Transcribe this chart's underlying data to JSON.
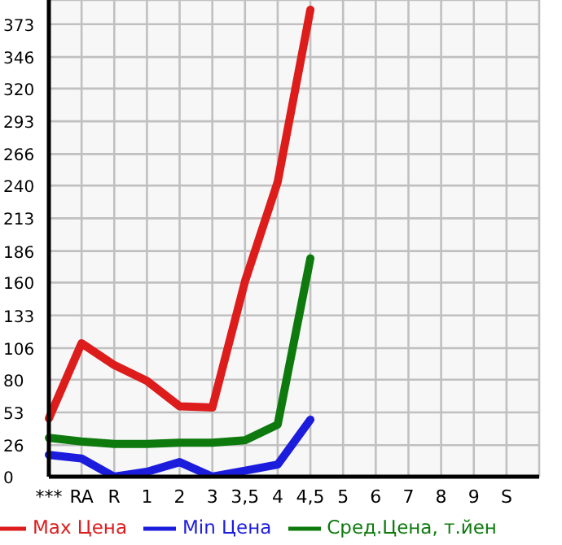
{
  "chart_data": {
    "type": "line",
    "categories": [
      "***",
      "RA",
      "R",
      "1",
      "2",
      "3",
      "3,5",
      "4",
      "4,5",
      "5",
      "6",
      "7",
      "8",
      "9",
      "S",
      null
    ],
    "series": [
      {
        "name": "Max Цена",
        "color": "#dd1c1c",
        "values": [
          48,
          110,
          92,
          79,
          58,
          57,
          161,
          243,
          385,
          null,
          null,
          null,
          null,
          null,
          null,
          null
        ]
      },
      {
        "name": "Min Цена",
        "color": "#1c1cdd",
        "values": [
          18,
          15,
          0,
          4,
          12,
          0,
          5,
          10,
          47,
          null,
          null,
          null,
          null,
          null,
          null,
          null
        ]
      },
      {
        "name": "Сред.Цена, т.йен",
        "color": "#0e7a0e",
        "values": [
          32,
          29,
          27,
          27,
          28,
          28,
          30,
          43,
          180,
          null,
          null,
          null,
          null,
          null,
          null,
          null
        ]
      }
    ],
    "ylim": [
      0,
      393
    ],
    "yticks": [
      0,
      26,
      53,
      80,
      106,
      133,
      160,
      186,
      213,
      240,
      266,
      293,
      320,
      346,
      373
    ],
    "grid": true,
    "legend": "bottom",
    "marker": "none",
    "line_style": "solid"
  }
}
